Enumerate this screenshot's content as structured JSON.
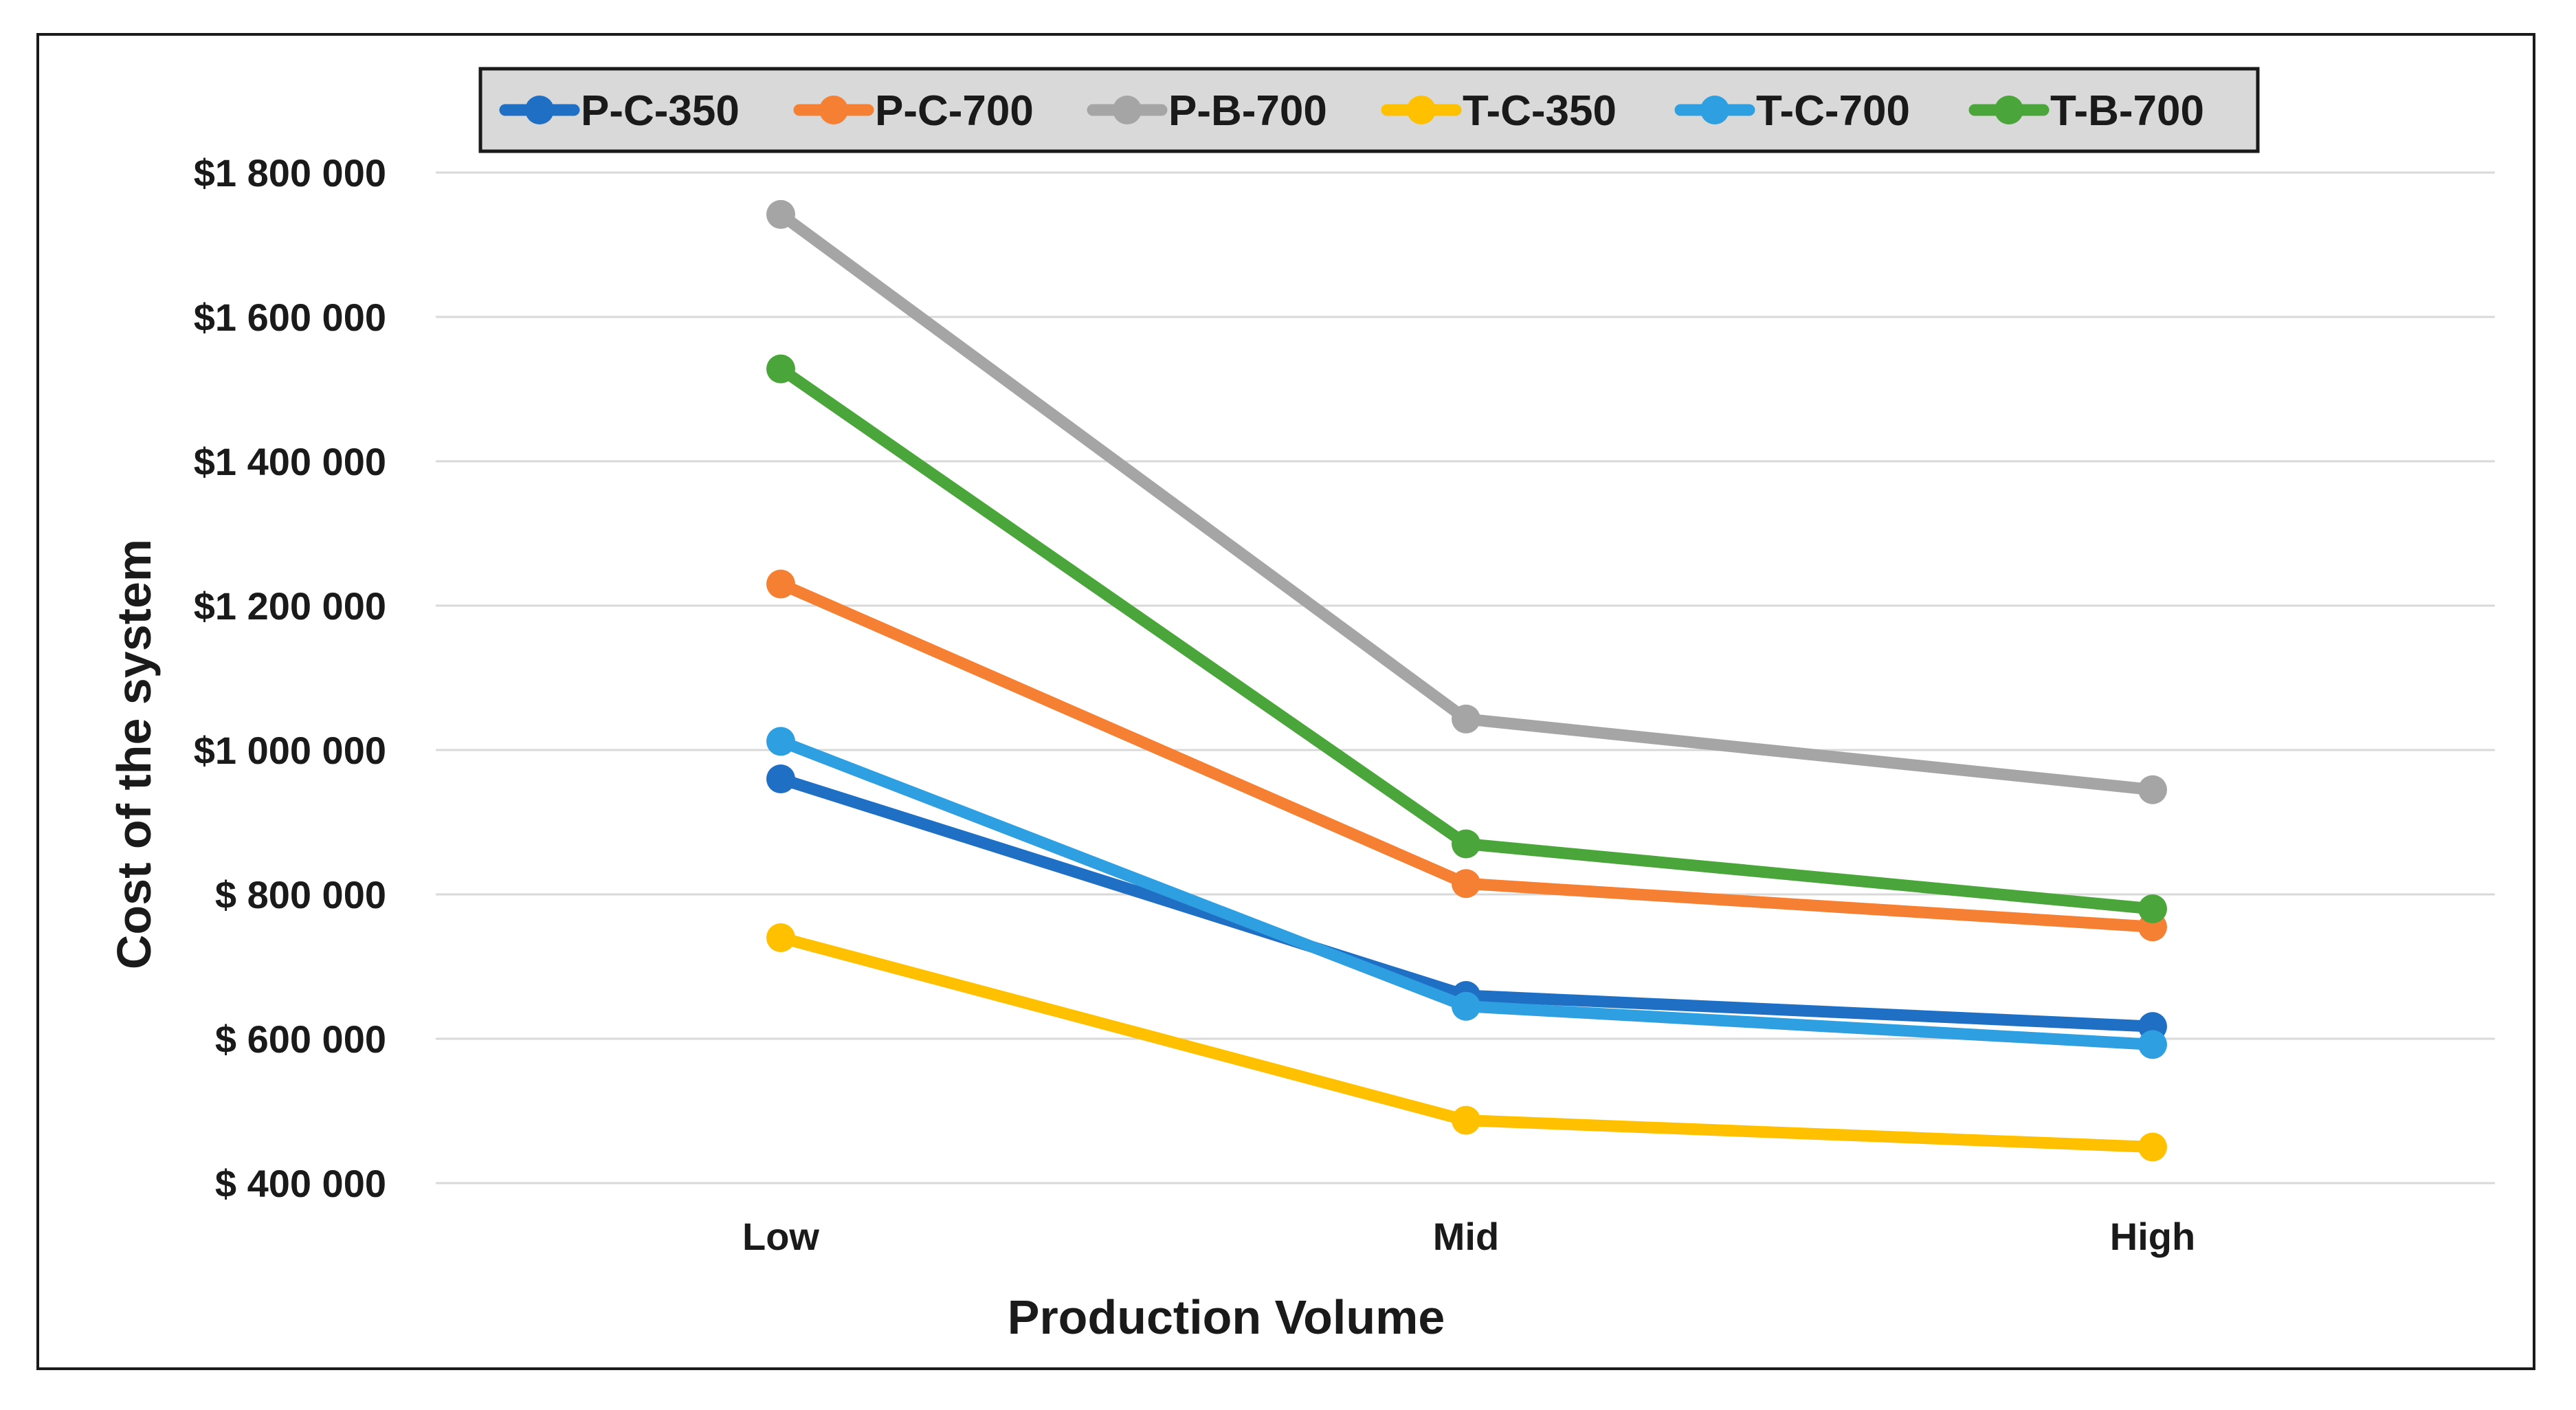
{
  "chart_data": {
    "type": "line",
    "title": "",
    "xlabel": "Production Volume",
    "ylabel": "Cost of the system",
    "categories": [
      "Low",
      "Mid",
      "High"
    ],
    "ylim": [
      400000,
      1800000
    ],
    "yticks": [
      400000,
      600000,
      800000,
      1000000,
      1200000,
      1400000,
      1600000,
      1800000
    ],
    "ytick_labels": [
      "$ 400 000",
      "$ 600 000",
      "$ 800 000",
      "$1 000 000",
      "$1 200 000",
      "$1 400 000",
      "$1 600 000",
      "$1 800 000"
    ],
    "grid": true,
    "legend_position": "top-center",
    "series": [
      {
        "name": "P-C-350",
        "color": "#1f6fc4",
        "values": [
          960000,
          660000,
          617000
        ]
      },
      {
        "name": "P-C-700",
        "color": "#f57f32",
        "values": [
          1230000,
          815000,
          755000
        ]
      },
      {
        "name": "P-B-700",
        "color": "#a5a5a5",
        "values": [
          1742000,
          1043000,
          945000
        ]
      },
      {
        "name": "T-C-350",
        "color": "#ffc000",
        "values": [
          740000,
          487000,
          450000
        ]
      },
      {
        "name": "T-C-700",
        "color": "#2e9fe0",
        "values": [
          1012000,
          645000,
          592000
        ]
      },
      {
        "name": "T-B-700",
        "color": "#4aa63a",
        "values": [
          1528000,
          870000,
          780000
        ]
      }
    ]
  }
}
